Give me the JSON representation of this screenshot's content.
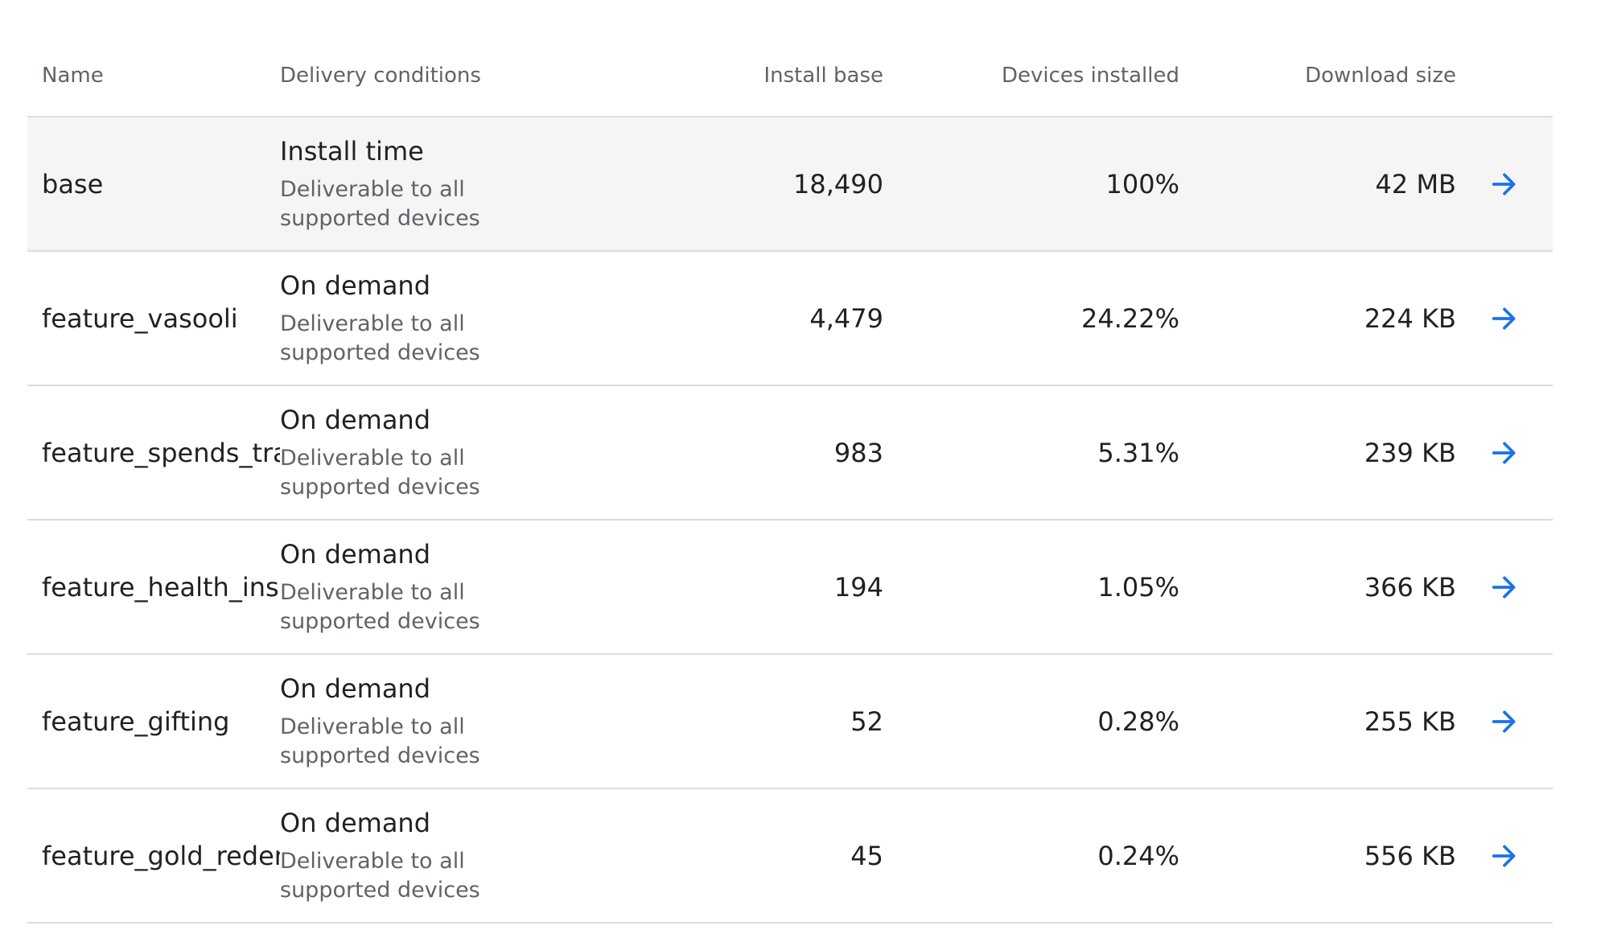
{
  "table": {
    "headers": {
      "name": "Name",
      "delivery": "Delivery conditions",
      "install_base": "Install base",
      "devices_installed": "Devices installed",
      "download_size": "Download size"
    },
    "rows": [
      {
        "name": "base",
        "delivery_title": "Install time",
        "delivery_sub": "Deliverable to all supported devices",
        "install_base": "18,490",
        "devices_installed": "100%",
        "download_size": "42 MB"
      },
      {
        "name": "feature_vasooli",
        "delivery_title": "On demand",
        "delivery_sub": "Deliverable to all supported devices",
        "install_base": "4,479",
        "devices_installed": "24.22%",
        "download_size": "224 KB"
      },
      {
        "name": "feature_spends_trac",
        "delivery_title": "On demand",
        "delivery_sub": "Deliverable to all supported devices",
        "install_base": "983",
        "devices_installed": "5.31%",
        "download_size": "239 KB"
      },
      {
        "name": "feature_health_insu",
        "delivery_title": "On demand",
        "delivery_sub": "Deliverable to all supported devices",
        "install_base": "194",
        "devices_installed": "1.05%",
        "download_size": "366 KB"
      },
      {
        "name": "feature_gifting",
        "delivery_title": "On demand",
        "delivery_sub": "Deliverable to all supported devices",
        "install_base": "52",
        "devices_installed": "0.28%",
        "download_size": "255 KB"
      },
      {
        "name": "feature_gold_redem",
        "delivery_title": "On demand",
        "delivery_sub": "Deliverable to all supported devices",
        "install_base": "45",
        "devices_installed": "0.24%",
        "download_size": "556 KB"
      }
    ],
    "highlighted_row": 0
  },
  "icons": {
    "row_action": "arrow-right-icon"
  },
  "colors": {
    "accent": "#1a73e8",
    "highlight_bg": "#f5f5f5",
    "divider": "#dadce0",
    "muted_text": "#5f6368"
  }
}
